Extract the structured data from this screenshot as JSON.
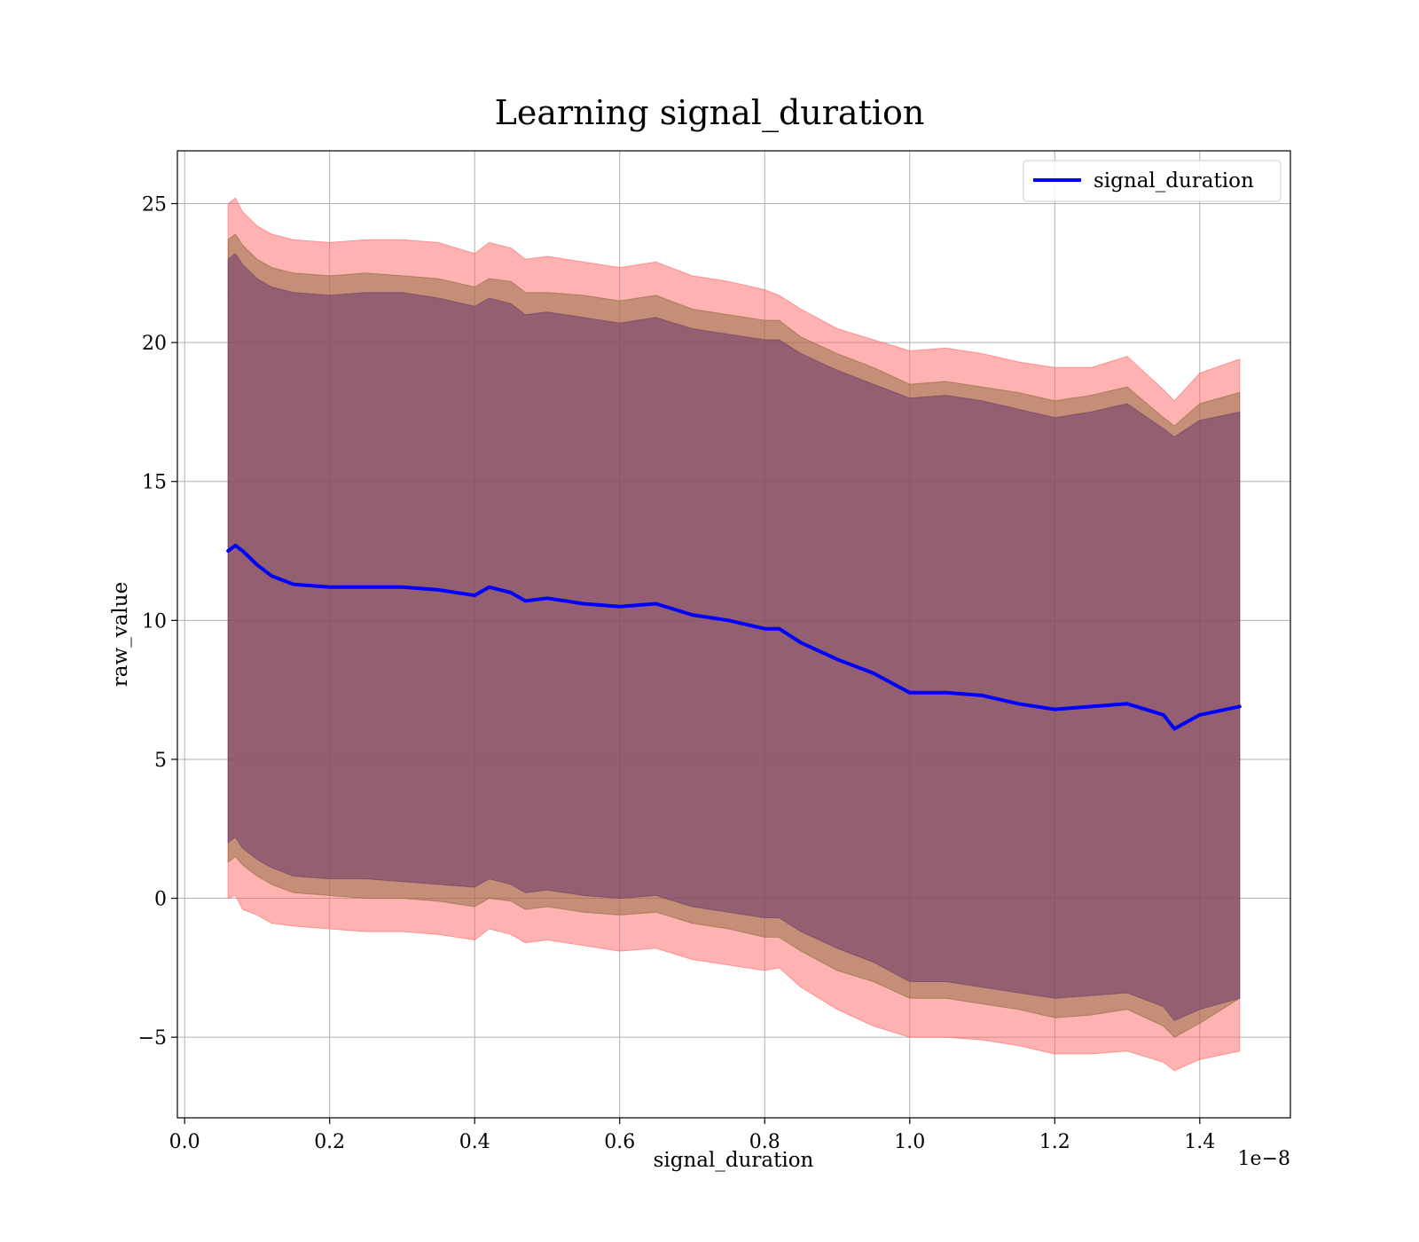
{
  "chart_data": {
    "type": "area",
    "title": "Learning signal_duration",
    "xlabel": "signal_duration",
    "ylabel": "raw_value",
    "x_offset_label": "1e−8",
    "xlim": [
      -0.01,
      1.525
    ],
    "ylim": [
      -7.9,
      26.9
    ],
    "x_ticks": [
      0.0,
      0.2,
      0.4,
      0.6,
      0.8,
      1.0,
      1.2,
      1.4
    ],
    "x_tick_labels": [
      "0.0",
      "0.2",
      "0.4",
      "0.6",
      "0.8",
      "1.0",
      "1.2",
      "1.4"
    ],
    "y_ticks": [
      -5,
      0,
      5,
      10,
      15,
      20,
      25
    ],
    "y_tick_labels": [
      "−5",
      "0",
      "5",
      "10",
      "15",
      "20",
      "25"
    ],
    "grid": true,
    "legend": {
      "placement": "upper right",
      "entries": [
        "signal_duration"
      ]
    },
    "colors": {
      "line": "#0000ff",
      "band_outer": "#ff6666",
      "band_middle": "#8b6a3a",
      "band_inner": "#6b3a6e"
    },
    "series": [
      {
        "name": "signal_duration",
        "x": [
          0.06,
          0.07,
          0.08,
          0.1,
          0.12,
          0.15,
          0.2,
          0.25,
          0.3,
          0.35,
          0.4,
          0.42,
          0.45,
          0.47,
          0.5,
          0.55,
          0.6,
          0.65,
          0.7,
          0.75,
          0.8,
          0.82,
          0.85,
          0.9,
          0.95,
          1.0,
          1.05,
          1.1,
          1.15,
          1.2,
          1.25,
          1.3,
          1.35,
          1.365,
          1.4,
          1.455
        ],
        "values": [
          12.5,
          12.7,
          12.5,
          12.0,
          11.6,
          11.3,
          11.2,
          11.2,
          11.2,
          11.1,
          10.9,
          11.2,
          11.0,
          10.7,
          10.8,
          10.6,
          10.5,
          10.6,
          10.2,
          10.0,
          9.7,
          9.7,
          9.2,
          8.6,
          8.1,
          7.4,
          7.4,
          7.3,
          7.0,
          6.8,
          6.9,
          7.0,
          6.6,
          6.1,
          6.6,
          6.9
        ],
        "band_outer_upper": [
          25.0,
          25.2,
          24.7,
          24.2,
          23.9,
          23.7,
          23.6,
          23.7,
          23.7,
          23.6,
          23.2,
          23.6,
          23.4,
          23.0,
          23.1,
          22.9,
          22.7,
          22.9,
          22.4,
          22.2,
          21.9,
          21.7,
          21.2,
          20.5,
          20.1,
          19.7,
          19.8,
          19.6,
          19.3,
          19.1,
          19.1,
          19.5,
          18.3,
          17.9,
          18.9,
          19.4
        ],
        "band_outer_lower": [
          0.0,
          0.1,
          -0.4,
          -0.6,
          -0.9,
          -1.0,
          -1.1,
          -1.2,
          -1.2,
          -1.3,
          -1.5,
          -1.1,
          -1.3,
          -1.6,
          -1.5,
          -1.7,
          -1.9,
          -1.8,
          -2.2,
          -2.4,
          -2.6,
          -2.5,
          -3.2,
          -4.0,
          -4.6,
          -5.0,
          -5.0,
          -5.1,
          -5.3,
          -5.6,
          -5.6,
          -5.5,
          -5.9,
          -6.2,
          -5.8,
          -5.5
        ],
        "band_middle_upper": [
          23.7,
          23.9,
          23.5,
          23.0,
          22.7,
          22.5,
          22.4,
          22.5,
          22.4,
          22.3,
          22.0,
          22.3,
          22.2,
          21.8,
          21.8,
          21.7,
          21.5,
          21.7,
          21.2,
          21.0,
          20.8,
          20.8,
          20.2,
          19.6,
          19.1,
          18.5,
          18.6,
          18.4,
          18.2,
          17.9,
          18.1,
          18.4,
          17.3,
          17.0,
          17.8,
          18.2
        ],
        "band_middle_lower": [
          1.3,
          1.5,
          1.2,
          0.8,
          0.5,
          0.2,
          0.1,
          0.0,
          0.0,
          -0.1,
          -0.3,
          0.0,
          -0.1,
          -0.4,
          -0.3,
          -0.5,
          -0.6,
          -0.5,
          -0.9,
          -1.1,
          -1.4,
          -1.4,
          -1.9,
          -2.6,
          -3.0,
          -3.6,
          -3.6,
          -3.8,
          -4.0,
          -4.3,
          -4.2,
          -4.0,
          -4.6,
          -5.0,
          -4.5,
          -3.6
        ],
        "band_inner_upper": [
          23.0,
          23.2,
          22.8,
          22.3,
          22.0,
          21.8,
          21.7,
          21.8,
          21.8,
          21.6,
          21.3,
          21.6,
          21.4,
          21.0,
          21.1,
          20.9,
          20.7,
          20.9,
          20.5,
          20.3,
          20.1,
          20.1,
          19.6,
          19.0,
          18.5,
          18.0,
          18.1,
          17.9,
          17.6,
          17.3,
          17.5,
          17.8,
          16.9,
          16.6,
          17.2,
          17.5
        ],
        "band_inner_lower": [
          2.0,
          2.2,
          1.8,
          1.4,
          1.1,
          0.8,
          0.7,
          0.7,
          0.6,
          0.5,
          0.4,
          0.7,
          0.5,
          0.2,
          0.3,
          0.1,
          0.0,
          0.1,
          -0.3,
          -0.5,
          -0.7,
          -0.7,
          -1.2,
          -1.8,
          -2.3,
          -3.0,
          -3.0,
          -3.2,
          -3.4,
          -3.6,
          -3.5,
          -3.4,
          -3.9,
          -4.4,
          -4.0,
          -3.6
        ]
      }
    ]
  }
}
